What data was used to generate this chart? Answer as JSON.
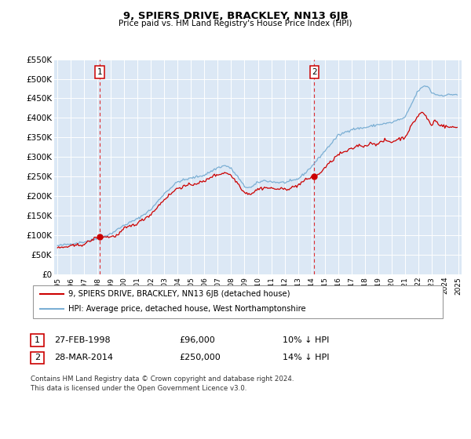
{
  "title": "9, SPIERS DRIVE, BRACKLEY, NN13 6JB",
  "subtitle": "Price paid vs. HM Land Registry's House Price Index (HPI)",
  "hpi_color": "#7bafd4",
  "price_color": "#cc0000",
  "bg_color": "#dce8f5",
  "grid_color": "#ffffff",
  "ylim": [
    0,
    550000
  ],
  "yticks": [
    0,
    50000,
    100000,
    150000,
    200000,
    250000,
    300000,
    350000,
    400000,
    450000,
    500000,
    550000
  ],
  "ytick_labels": [
    "£0",
    "£50K",
    "£100K",
    "£150K",
    "£200K",
    "£250K",
    "£300K",
    "£350K",
    "£400K",
    "£450K",
    "£500K",
    "£550K"
  ],
  "sale1_x": 1998.15,
  "sale1_y": 96000,
  "sale1_label": "1",
  "sale1_date": "27-FEB-1998",
  "sale1_price": "£96,000",
  "sale1_note": "10% ↓ HPI",
  "sale2_x": 2014.23,
  "sale2_y": 250000,
  "sale2_label": "2",
  "sale2_date": "28-MAR-2014",
  "sale2_price": "£250,000",
  "sale2_note": "14% ↓ HPI",
  "legend_line1": "9, SPIERS DRIVE, BRACKLEY, NN13 6JB (detached house)",
  "legend_line2": "HPI: Average price, detached house, West Northamptonshire",
  "footnote": "Contains HM Land Registry data © Crown copyright and database right 2024.\nThis data is licensed under the Open Government Licence v3.0.",
  "xtick_years": [
    1995,
    1996,
    1997,
    1998,
    1999,
    2000,
    2001,
    2002,
    2003,
    2004,
    2005,
    2006,
    2007,
    2008,
    2009,
    2010,
    2011,
    2012,
    2013,
    2014,
    2015,
    2016,
    2017,
    2018,
    2019,
    2020,
    2021,
    2022,
    2023,
    2024,
    2025
  ]
}
